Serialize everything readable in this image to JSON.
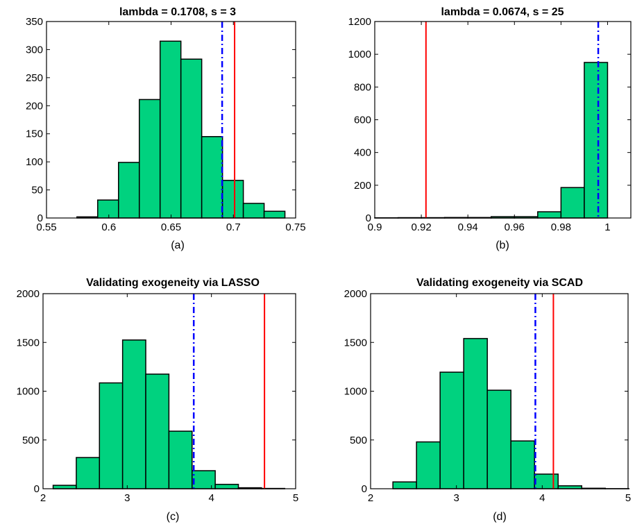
{
  "colors": {
    "bar_fill": "#00D27F",
    "bar_edge": "#000000",
    "solid_line": "#FF0000",
    "dashdot_line": "#0000FF"
  },
  "chart_data": [
    {
      "type": "bar",
      "title": "lambda = 0.1708, s = 3",
      "caption": "(a)",
      "xlim": [
        0.55,
        0.75
      ],
      "ylim": [
        0,
        350
      ],
      "xticks": [
        0.55,
        0.6,
        0.65,
        0.7,
        0.75
      ],
      "xtick_labels": [
        "0.55",
        "0.6",
        "0.65",
        "0.7",
        "0.75"
      ],
      "yticks": [
        0,
        50,
        100,
        150,
        200,
        250,
        300,
        350
      ],
      "ytick_labels": [
        "0",
        "50",
        "100",
        "150",
        "200",
        "250",
        "300",
        "350"
      ],
      "bin_edges": [
        0.5744,
        0.5911,
        0.6078,
        0.6245,
        0.6412,
        0.6579,
        0.6746,
        0.6913,
        0.708,
        0.7247,
        0.7414
      ],
      "counts": [
        2,
        32,
        99,
        211,
        315,
        283,
        145,
        67,
        26,
        12
      ],
      "dashdot_x": 0.691,
      "solid_x": 0.701
    },
    {
      "type": "bar",
      "title": "lambda = 0.0674, s = 25",
      "caption": "(b)",
      "xlim": [
        0.9,
        1.01
      ],
      "ylim": [
        0,
        1200
      ],
      "xticks": [
        0.9,
        0.92,
        0.94,
        0.96,
        0.98,
        1
      ],
      "xtick_labels": [
        "0.9",
        "0.92",
        "0.94",
        "0.96",
        "0.98",
        "1"
      ],
      "yticks": [
        0,
        200,
        400,
        600,
        800,
        1000,
        1200
      ],
      "ytick_labels": [
        "0",
        "200",
        "400",
        "600",
        "800",
        "1000",
        "1200"
      ],
      "bin_edges": [
        0.9,
        0.91,
        0.92,
        0.93,
        0.94,
        0.95,
        0.96,
        0.97,
        0.98,
        0.99,
        1.0
      ],
      "counts": [
        1,
        2,
        2,
        3,
        3,
        8,
        8,
        38,
        186,
        950
      ],
      "dashdot_x": 0.996,
      "solid_x": 0.922
    },
    {
      "type": "bar",
      "title": "Validating exogeneity via LASSO",
      "caption": "(c)",
      "xlim": [
        2,
        5
      ],
      "ylim": [
        0,
        2000
      ],
      "xticks": [
        2,
        3,
        4,
        5
      ],
      "xtick_labels": [
        "2",
        "3",
        "4",
        "5"
      ],
      "yticks": [
        0,
        500,
        1000,
        1500,
        2000
      ],
      "ytick_labels": [
        "0",
        "500",
        "1000",
        "1500",
        "2000"
      ],
      "bin_edges": [
        2.12,
        2.395,
        2.67,
        2.945,
        3.22,
        3.495,
        3.77,
        4.045,
        4.32,
        4.595,
        4.87
      ],
      "counts": [
        35,
        320,
        1085,
        1525,
        1175,
        590,
        185,
        45,
        10,
        3
      ],
      "dashdot_x": 3.79,
      "solid_x": 4.63
    },
    {
      "type": "bar",
      "title": "Validating exogeneity via SCAD",
      "caption": "(d)",
      "xlim": [
        2,
        5
      ],
      "ylim": [
        0,
        2000
      ],
      "xticks": [
        2,
        3,
        4,
        5
      ],
      "xtick_labels": [
        "2",
        "3",
        "4",
        "5"
      ],
      "yticks": [
        0,
        500,
        1000,
        1500,
        2000
      ],
      "ytick_labels": [
        "0",
        "500",
        "1000",
        "1500",
        "2000"
      ],
      "bin_edges": [
        2.26,
        2.535,
        2.81,
        3.085,
        3.36,
        3.635,
        3.91,
        4.185,
        4.46,
        4.735,
        5.01
      ],
      "counts": [
        70,
        480,
        1195,
        1540,
        1010,
        490,
        150,
        30,
        5,
        1
      ],
      "dashdot_x": 3.92,
      "solid_x": 4.13
    }
  ]
}
